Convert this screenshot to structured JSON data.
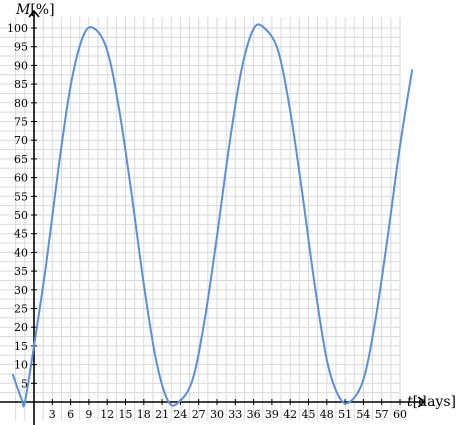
{
  "chart_data": {
    "type": "line",
    "title": "",
    "x_axis": {
      "variable": "t",
      "unit": "[days]",
      "range": [
        -3.5,
        62
      ],
      "ticks": [
        3,
        6,
        9,
        12,
        15,
        18,
        21,
        24,
        27,
        30,
        33,
        36,
        39,
        42,
        45,
        48,
        51,
        54,
        57,
        60
      ]
    },
    "y_axis": {
      "variable": "M",
      "unit": "[%]",
      "range": [
        -5,
        104
      ],
      "ticks": [
        5,
        10,
        15,
        20,
        25,
        30,
        35,
        40,
        45,
        50,
        55,
        60,
        65,
        70,
        75,
        80,
        85,
        90,
        95,
        100
      ]
    },
    "grid": true,
    "series": [
      {
        "color": "#5b8fde",
        "x": [
          -3.5,
          -2,
          -1.5,
          0,
          2,
          4,
          6,
          8,
          9.75,
          12,
          14,
          16,
          18,
          20,
          22,
          23.75,
          26,
          28,
          30,
          32,
          34,
          36,
          37.75,
          40,
          42,
          44,
          46,
          48,
          50,
          51.75,
          54,
          56,
          58,
          60,
          62
        ],
        "y": [
          7.5,
          0.6,
          0,
          15,
          36.9,
          62.4,
          84.5,
          97.6,
          100,
          94,
          77.8,
          55.6,
          31.5,
          11.3,
          0.2,
          0,
          6,
          22.2,
          44.4,
          68.5,
          88.7,
          99.8,
          100,
          94,
          77.8,
          55.6,
          31.5,
          11.3,
          1.4,
          0,
          6,
          22.2,
          44.4,
          68.5,
          88.9
        ]
      }
    ]
  }
}
